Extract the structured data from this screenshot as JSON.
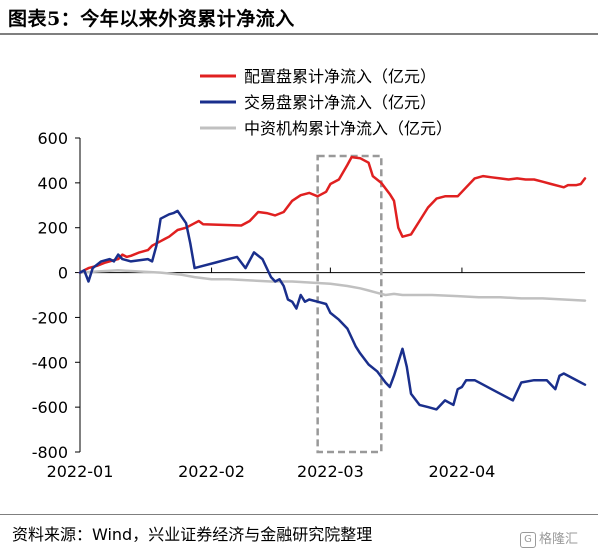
{
  "figure": {
    "title": "图表5：今年以来外资累计净流入",
    "source": "资料来源：Wind，兴业证券经济与金融研究院整理",
    "watermark": "格隆汇",
    "watermark_mark": "G"
  },
  "chart_data": {
    "type": "line",
    "title": "",
    "xlabel": "",
    "ylabel": "",
    "ylim": [
      -800,
      600
    ],
    "yticks": [
      600,
      400,
      200,
      0,
      -200,
      -400,
      -600,
      -800
    ],
    "ytick_labels": [
      "600",
      "400",
      "200",
      "0",
      "-200",
      "-400",
      "-600",
      "-800"
    ],
    "xlim": [
      "2022-01-01",
      "2022-04-30"
    ],
    "xticks": [
      "2022-01-01",
      "2022-02-01",
      "2022-03-01",
      "2022-04-01"
    ],
    "xtick_labels": [
      "2022-01",
      "2022-02",
      "2022-03",
      "2022-04"
    ],
    "legend_position": "top-right",
    "grid": false,
    "highlight_box": {
      "x": [
        "2022-02-26",
        "2022-03-13"
      ],
      "y": [
        -800,
        520
      ],
      "style": "dashed",
      "color": "#999999"
    },
    "series": [
      {
        "name": "配置盘累计净流入（亿元）",
        "color": "#e02020",
        "points": [
          [
            "2022-01-01",
            0
          ],
          [
            "2022-01-02",
            10
          ],
          [
            "2022-01-03",
            20
          ],
          [
            "2022-01-05",
            30
          ],
          [
            "2022-01-07",
            45
          ],
          [
            "2022-01-09",
            55
          ],
          [
            "2022-01-10",
            60
          ],
          [
            "2022-01-11",
            80
          ],
          [
            "2022-01-12",
            70
          ],
          [
            "2022-01-13",
            75
          ],
          [
            "2022-01-15",
            90
          ],
          [
            "2022-01-17",
            100
          ],
          [
            "2022-01-18",
            120
          ],
          [
            "2022-01-20",
            140
          ],
          [
            "2022-01-21",
            150
          ],
          [
            "2022-01-22",
            160
          ],
          [
            "2022-01-24",
            190
          ],
          [
            "2022-01-26",
            200
          ],
          [
            "2022-01-28",
            220
          ],
          [
            "2022-01-29",
            230
          ],
          [
            "2022-01-30",
            215
          ],
          [
            "2022-02-08",
            210
          ],
          [
            "2022-02-10",
            230
          ],
          [
            "2022-02-12",
            270
          ],
          [
            "2022-02-14",
            265
          ],
          [
            "2022-02-16",
            255
          ],
          [
            "2022-02-18",
            270
          ],
          [
            "2022-02-20",
            320
          ],
          [
            "2022-02-22",
            345
          ],
          [
            "2022-02-24",
            355
          ],
          [
            "2022-02-26",
            340
          ],
          [
            "2022-02-28",
            360
          ],
          [
            "2022-03-01",
            395
          ],
          [
            "2022-03-03",
            415
          ],
          [
            "2022-03-05",
            480
          ],
          [
            "2022-03-06",
            515
          ],
          [
            "2022-03-08",
            510
          ],
          [
            "2022-03-10",
            490
          ],
          [
            "2022-03-11",
            430
          ],
          [
            "2022-03-13",
            400
          ],
          [
            "2022-03-15",
            350
          ],
          [
            "2022-03-16",
            320
          ],
          [
            "2022-03-17",
            200
          ],
          [
            "2022-03-18",
            160
          ],
          [
            "2022-03-20",
            170
          ],
          [
            "2022-03-22",
            230
          ],
          [
            "2022-03-24",
            290
          ],
          [
            "2022-03-26",
            330
          ],
          [
            "2022-03-28",
            340
          ],
          [
            "2022-03-31",
            340
          ],
          [
            "2022-04-02",
            380
          ],
          [
            "2022-04-04",
            420
          ],
          [
            "2022-04-06",
            430
          ],
          [
            "2022-04-08",
            425
          ],
          [
            "2022-04-10",
            420
          ],
          [
            "2022-04-12",
            415
          ],
          [
            "2022-04-14",
            420
          ],
          [
            "2022-04-16",
            415
          ],
          [
            "2022-04-18",
            415
          ],
          [
            "2022-04-20",
            405
          ],
          [
            "2022-04-22",
            395
          ],
          [
            "2022-04-24",
            385
          ],
          [
            "2022-04-25",
            380
          ],
          [
            "2022-04-26",
            390
          ],
          [
            "2022-04-28",
            390
          ],
          [
            "2022-04-29",
            395
          ],
          [
            "2022-04-30",
            420
          ]
        ]
      },
      {
        "name": "交易盘累计净流入（亿元）",
        "color": "#1a2f8c",
        "points": [
          [
            "2022-01-01",
            0
          ],
          [
            "2022-01-02",
            10
          ],
          [
            "2022-01-03",
            -40
          ],
          [
            "2022-01-04",
            20
          ],
          [
            "2022-01-06",
            50
          ],
          [
            "2022-01-08",
            60
          ],
          [
            "2022-01-09",
            50
          ],
          [
            "2022-01-10",
            80
          ],
          [
            "2022-01-11",
            60
          ],
          [
            "2022-01-13",
            50
          ],
          [
            "2022-01-15",
            55
          ],
          [
            "2022-01-17",
            60
          ],
          [
            "2022-01-18",
            50
          ],
          [
            "2022-01-19",
            120
          ],
          [
            "2022-01-20",
            240
          ],
          [
            "2022-01-22",
            260
          ],
          [
            "2022-01-23",
            265
          ],
          [
            "2022-01-24",
            275
          ],
          [
            "2022-01-26",
            220
          ],
          [
            "2022-01-27",
            130
          ],
          [
            "2022-01-28",
            20
          ],
          [
            "2022-01-30",
            30
          ],
          [
            "2022-02-02",
            45
          ],
          [
            "2022-02-05",
            60
          ],
          [
            "2022-02-07",
            70
          ],
          [
            "2022-02-09",
            20
          ],
          [
            "2022-02-11",
            90
          ],
          [
            "2022-02-13",
            60
          ],
          [
            "2022-02-15",
            -20
          ],
          [
            "2022-02-16",
            -40
          ],
          [
            "2022-02-17",
            -30
          ],
          [
            "2022-02-18",
            -60
          ],
          [
            "2022-02-19",
            -120
          ],
          [
            "2022-02-20",
            -130
          ],
          [
            "2022-02-21",
            -160
          ],
          [
            "2022-02-22",
            -100
          ],
          [
            "2022-02-23",
            -130
          ],
          [
            "2022-02-24",
            -120
          ],
          [
            "2022-02-26",
            -130
          ],
          [
            "2022-02-28",
            -140
          ],
          [
            "2022-03-01",
            -180
          ],
          [
            "2022-03-03",
            -210
          ],
          [
            "2022-03-05",
            -250
          ],
          [
            "2022-03-07",
            -330
          ],
          [
            "2022-03-08",
            -360
          ],
          [
            "2022-03-10",
            -410
          ],
          [
            "2022-03-12",
            -440
          ],
          [
            "2022-03-14",
            -490
          ],
          [
            "2022-03-15",
            -510
          ],
          [
            "2022-03-16",
            -460
          ],
          [
            "2022-03-18",
            -340
          ],
          [
            "2022-03-19",
            -420
          ],
          [
            "2022-03-20",
            -540
          ],
          [
            "2022-03-22",
            -590
          ],
          [
            "2022-03-24",
            -600
          ],
          [
            "2022-03-26",
            -610
          ],
          [
            "2022-03-28",
            -570
          ],
          [
            "2022-03-29",
            -580
          ],
          [
            "2022-03-30",
            -590
          ],
          [
            "2022-03-31",
            -520
          ],
          [
            "2022-04-01",
            -510
          ],
          [
            "2022-04-02",
            -480
          ],
          [
            "2022-04-04",
            -480
          ],
          [
            "2022-04-06",
            -500
          ],
          [
            "2022-04-08",
            -520
          ],
          [
            "2022-04-10",
            -540
          ],
          [
            "2022-04-12",
            -560
          ],
          [
            "2022-04-13",
            -570
          ],
          [
            "2022-04-15",
            -490
          ],
          [
            "2022-04-18",
            -480
          ],
          [
            "2022-04-21",
            -480
          ],
          [
            "2022-04-22",
            -500
          ],
          [
            "2022-04-23",
            -520
          ],
          [
            "2022-04-24",
            -460
          ],
          [
            "2022-04-25",
            -450
          ],
          [
            "2022-04-27",
            -470
          ],
          [
            "2022-04-29",
            -490
          ],
          [
            "2022-04-30",
            -500
          ]
        ]
      },
      {
        "name": "中资机构累计净流入（亿元）",
        "color": "#c0c0c0",
        "points": [
          [
            "2022-01-01",
            0
          ],
          [
            "2022-01-05",
            5
          ],
          [
            "2022-01-10",
            10
          ],
          [
            "2022-01-15",
            5
          ],
          [
            "2022-01-20",
            0
          ],
          [
            "2022-01-25",
            -10
          ],
          [
            "2022-01-28",
            -20
          ],
          [
            "2022-02-01",
            -30
          ],
          [
            "2022-02-05",
            -30
          ],
          [
            "2022-02-10",
            -35
          ],
          [
            "2022-02-15",
            -40
          ],
          [
            "2022-02-20",
            -40
          ],
          [
            "2022-02-25",
            -45
          ],
          [
            "2022-03-01",
            -50
          ],
          [
            "2022-03-05",
            -60
          ],
          [
            "2022-03-08",
            -70
          ],
          [
            "2022-03-10",
            -80
          ],
          [
            "2022-03-12",
            -90
          ],
          [
            "2022-03-14",
            -100
          ],
          [
            "2022-03-16",
            -95
          ],
          [
            "2022-03-18",
            -100
          ],
          [
            "2022-03-20",
            -100
          ],
          [
            "2022-03-25",
            -100
          ],
          [
            "2022-03-31",
            -105
          ],
          [
            "2022-04-05",
            -110
          ],
          [
            "2022-04-10",
            -110
          ],
          [
            "2022-04-15",
            -115
          ],
          [
            "2022-04-20",
            -115
          ],
          [
            "2022-04-25",
            -120
          ],
          [
            "2022-04-30",
            -125
          ]
        ]
      }
    ]
  }
}
